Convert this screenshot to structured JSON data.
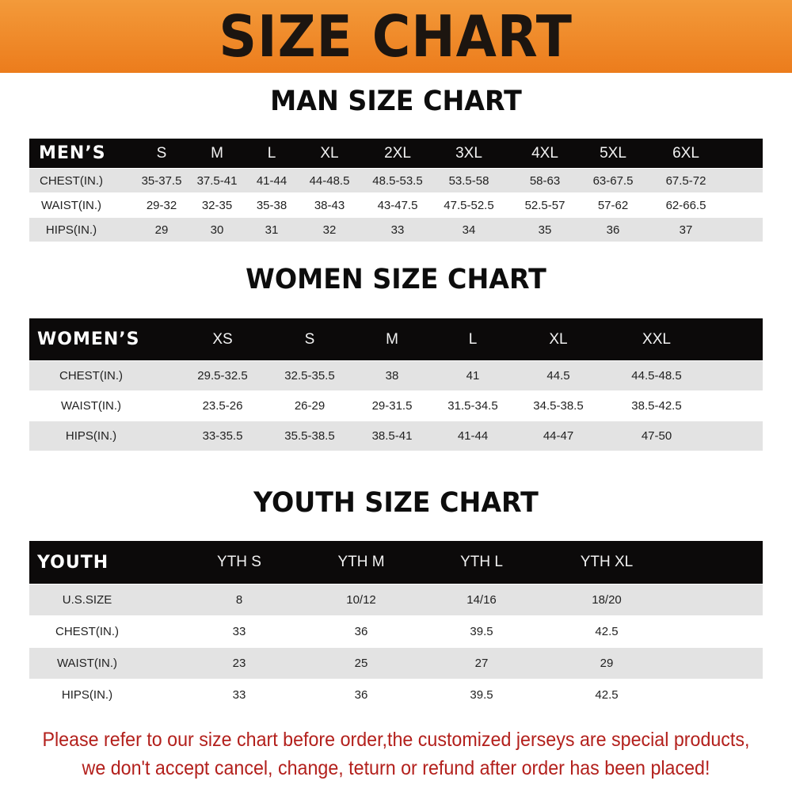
{
  "title": "SIZE CHART",
  "men": {
    "title": "MAN SIZE CHART",
    "header": "MEN’S",
    "sizes": [
      "S",
      "M",
      "L",
      "XL",
      "2XL",
      "3XL",
      "4XL",
      "5XL",
      "6XL"
    ],
    "rows": [
      {
        "label": "CHEST(IN.)",
        "values": [
          "35-37.5",
          "37.5-41",
          "41-44",
          "44-48.5",
          "48.5-53.5",
          "53.5-58",
          "58-63",
          "63-67.5",
          "67.5-72"
        ]
      },
      {
        "label": "WAIST(IN.)",
        "values": [
          "29-32",
          "32-35",
          "35-38",
          "38-43",
          "43-47.5",
          "47.5-52.5",
          "52.5-57",
          "57-62",
          "62-66.5"
        ]
      },
      {
        "label": "HIPS(IN.)",
        "values": [
          "29",
          "30",
          "31",
          "32",
          "33",
          "34",
          "35",
          "36",
          "37"
        ]
      }
    ]
  },
  "women": {
    "title": "WOMEN SIZE CHART",
    "header": "WOMEN’S",
    "sizes": [
      "XS",
      "S",
      "M",
      "L",
      "XL",
      "XXL"
    ],
    "rows": [
      {
        "label": "CHEST(IN.)",
        "values": [
          "29.5-32.5",
          "32.5-35.5",
          "38",
          "41",
          "44.5",
          "44.5-48.5"
        ]
      },
      {
        "label": "WAIST(IN.)",
        "values": [
          "23.5-26",
          "26-29",
          "29-31.5",
          "31.5-34.5",
          "34.5-38.5",
          "38.5-42.5"
        ]
      },
      {
        "label": "HIPS(IN.)",
        "values": [
          "33-35.5",
          "35.5-38.5",
          "38.5-41",
          "41-44",
          "44-47",
          "47-50"
        ]
      }
    ]
  },
  "youth": {
    "title": "YOUTH SIZE CHART",
    "header": "YOUTH",
    "sizes": [
      "YTH S",
      "YTH M",
      "YTH L",
      "YTH XL"
    ],
    "rows": [
      {
        "label": "U.S.SIZE",
        "values": [
          "8",
          "10/12",
          "14/16",
          "18/20"
        ]
      },
      {
        "label": "CHEST(IN.)",
        "values": [
          "33",
          "36",
          "39.5",
          "42.5"
        ]
      },
      {
        "label": "WAIST(IN.)",
        "values": [
          "23",
          "25",
          "27",
          "29"
        ]
      },
      {
        "label": "HIPS(IN.)",
        "values": [
          "33",
          "36",
          "39.5",
          "42.5"
        ]
      }
    ]
  },
  "notice": {
    "line1": "Please refer to our size chart before order,the customized jerseys are special products,",
    "line2": "we don't accept cancel, change, teturn or refund after order has been placed!"
  },
  "colors": {
    "banner": "#ec7c1c",
    "header_bg": "#0c0a0a",
    "row_alt": "#e3e3e3",
    "notice": "#b3201c"
  }
}
